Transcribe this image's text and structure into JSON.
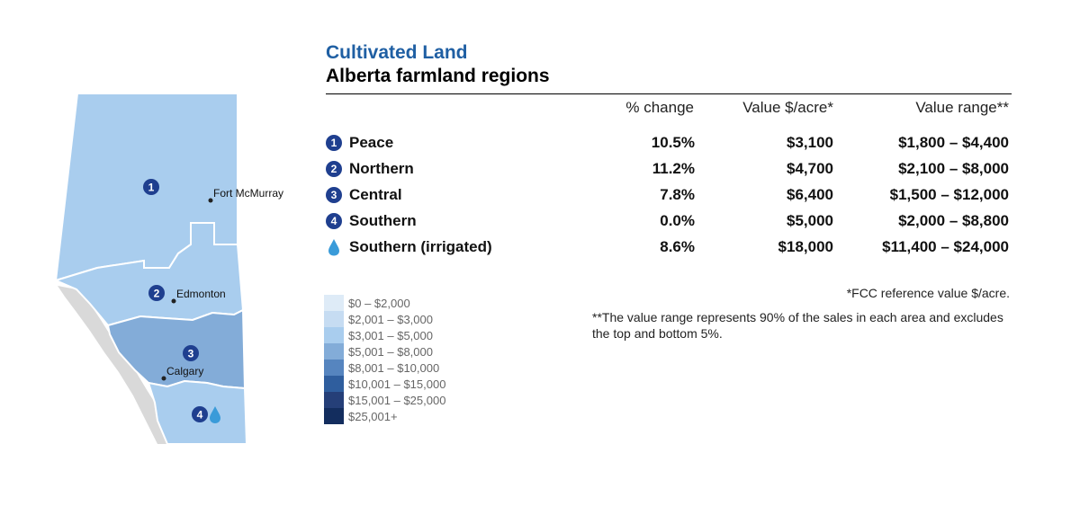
{
  "header": {
    "title": "Cultivated Land",
    "subtitle": "Alberta farmland regions"
  },
  "columns": {
    "pct": "% change",
    "value": "Value $/acre*",
    "range": "Value range**"
  },
  "regions": [
    {
      "marker": "1",
      "name": "Peace",
      "pct": "10.5%",
      "value": "$3,100",
      "range": "$1,800 – $4,400"
    },
    {
      "marker": "2",
      "name": "Northern",
      "pct": "11.2%",
      "value": "$4,700",
      "range": "$2,100 – $8,000"
    },
    {
      "marker": "3",
      "name": "Central",
      "pct": "7.8%",
      "value": "$6,400",
      "range": "$1,500 – $12,000"
    },
    {
      "marker": "4",
      "name": "Southern",
      "pct": "0.0%",
      "value": "$5,000",
      "range": "$2,000 – $8,800"
    },
    {
      "marker": "drop-icon",
      "name": "Southern (irrigated)",
      "pct": "8.6%",
      "value": "$18,000",
      "range": "$11,400 – $24,000"
    }
  ],
  "notes": {
    "fcc": "*FCC reference value $/acre.",
    "range": "**The value range represents 90% of the sales in each area and excludes the top and bottom 5%."
  },
  "legend": [
    {
      "label": "$0 – $2,000",
      "color": "#deebf7"
    },
    {
      "label": "$2,001 – $3,000",
      "color": "#c6dcf2"
    },
    {
      "label": "$3,001 – $5,000",
      "color": "#a9cdee"
    },
    {
      "label": "$5,001 – $8,000",
      "color": "#83acd8"
    },
    {
      "label": "$8,001 – $10,000",
      "color": "#5685bf"
    },
    {
      "label": "$10,001 – $15,000",
      "color": "#2f5e9e"
    },
    {
      "label": "$15,001 – $25,000",
      "color": "#253f78"
    },
    {
      "label": "$25,001+",
      "color": "#132d5e"
    }
  ],
  "map": {
    "cities": [
      "Fort McMurray",
      "Edmonton",
      "Calgary"
    ],
    "region_markers": [
      "1",
      "2",
      "3",
      "4"
    ],
    "region_colors": {
      "peace": "#a9cdee",
      "northern": "#a9cdee",
      "central": "#83acd8",
      "southern": "#a9cdee",
      "mountains": "#d9d9d9"
    },
    "marker_color": "#1f3f8f",
    "irrigation_color": "#3a9bd9"
  }
}
